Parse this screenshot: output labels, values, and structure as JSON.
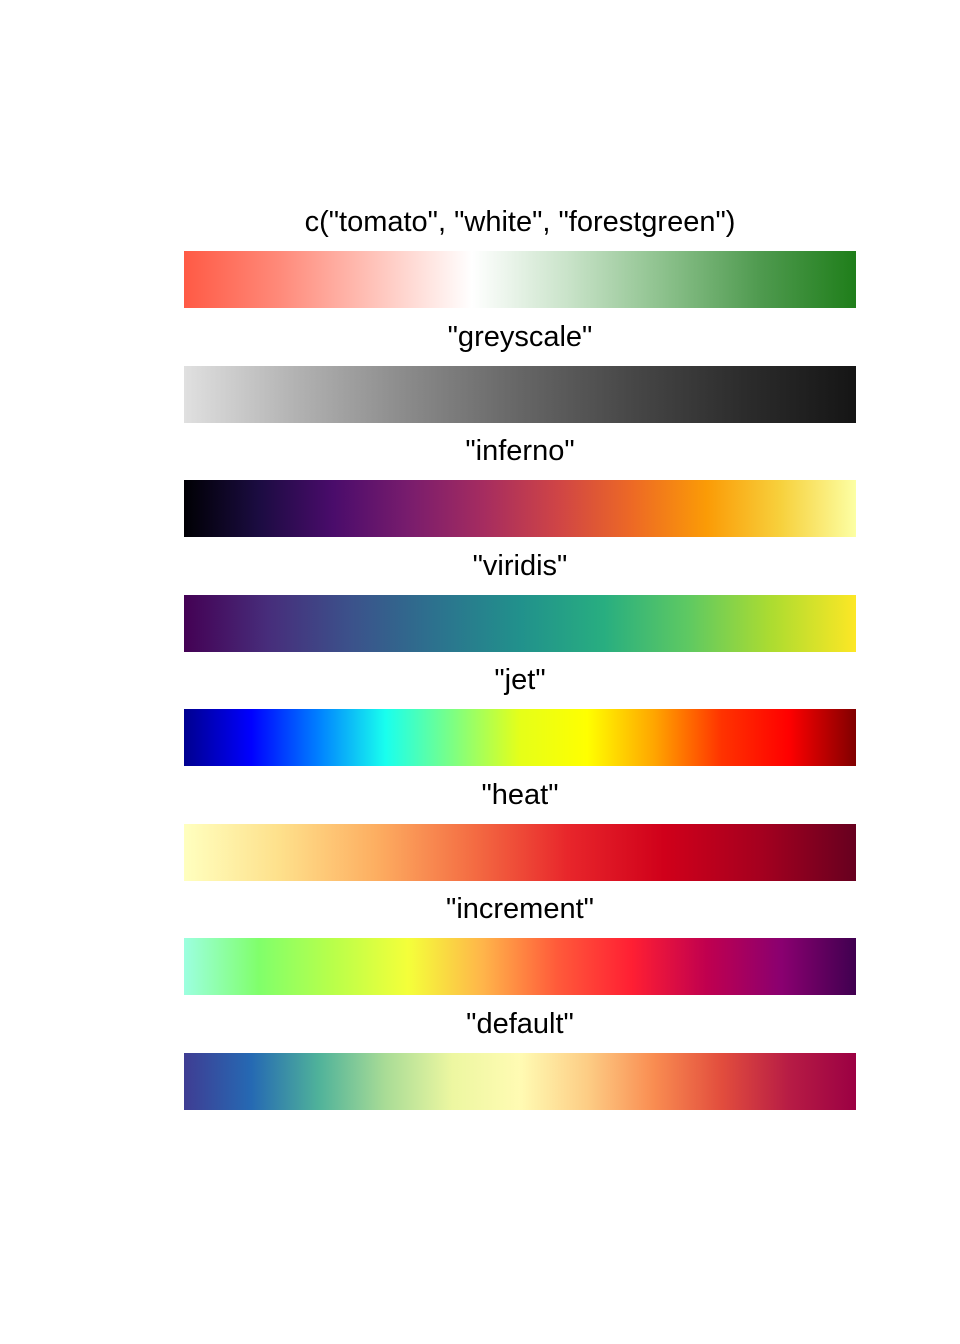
{
  "palettes": [
    {
      "label": "c(\"tomato\", \"white\", \"forestgreen\")",
      "colors": [
        "#ff5a45",
        "#ff8a7a",
        "#ffc4bb",
        "#ffffff",
        "#c9e3c9",
        "#8cc18c",
        "#4f9a4f",
        "#1f7e1a"
      ]
    },
    {
      "label": "\"greyscale\"",
      "colors": [
        "#e0e0e0",
        "#b2b2b2",
        "#8a8a8a",
        "#666666",
        "#474747",
        "#2c2c2c",
        "#151515"
      ]
    },
    {
      "label": "\"inferno\"",
      "colors": [
        "#000004",
        "#1b0c41",
        "#4a0c6b",
        "#781c6d",
        "#a52c60",
        "#cf4446",
        "#ed6925",
        "#fb9b06",
        "#f7d13d",
        "#fcffa4"
      ]
    },
    {
      "label": "\"viridis\"",
      "colors": [
        "#440154",
        "#472d7b",
        "#3b528b",
        "#2c728e",
        "#21918c",
        "#28ae80",
        "#5ec962",
        "#addc30",
        "#fde725"
      ]
    },
    {
      "label": "\"jet\"",
      "colors": [
        "#00008f",
        "#0000ff",
        "#0080ff",
        "#19ffee",
        "#7dff83",
        "#e5ff19",
        "#ffff00",
        "#ffa500",
        "#ff3300",
        "#ff0000",
        "#800000"
      ]
    },
    {
      "label": "\"heat\"",
      "colors": [
        "#ffffbf",
        "#fee08b",
        "#fdae61",
        "#f46d43",
        "#e8262b",
        "#d0001a",
        "#a5001f",
        "#67001f"
      ]
    },
    {
      "label": "\"increment\"",
      "colors": [
        "#9cffe0",
        "#80ff6b",
        "#b9ff4a",
        "#f4ff3a",
        "#ffb54a",
        "#ff5a3a",
        "#ff1f33",
        "#c0004f",
        "#8a0070",
        "#400050"
      ]
    },
    {
      "label": "\"default\"",
      "colors": [
        "#3f3d93",
        "#2569b3",
        "#4fb29a",
        "#a9dc96",
        "#edf7a1",
        "#fffbb3",
        "#fdcd85",
        "#f98c51",
        "#e24d3d",
        "#b71c45",
        "#9b0043"
      ]
    }
  ]
}
